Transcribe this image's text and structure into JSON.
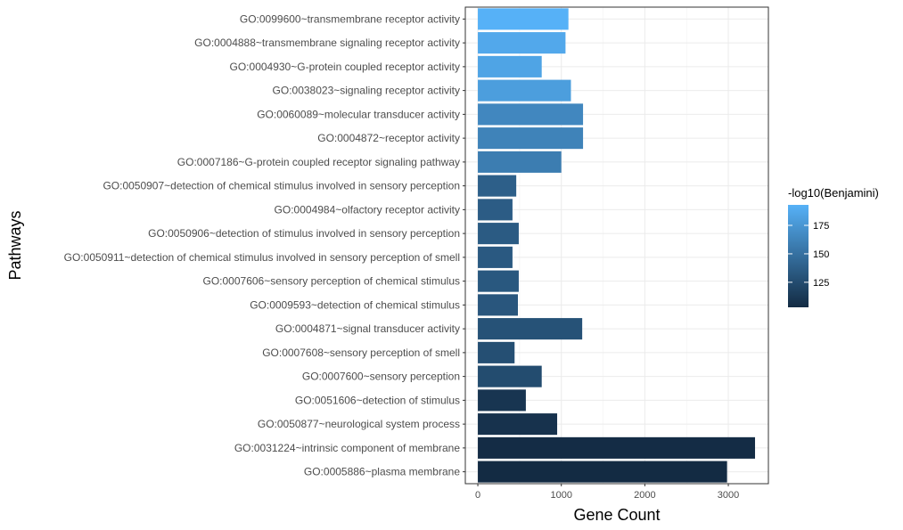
{
  "chart_data": {
    "type": "bar",
    "orientation": "horizontal",
    "title": "",
    "xlabel": "Gene Count",
    "ylabel": "Pathways",
    "xlim": [
      -150,
      3480
    ],
    "xticks": [
      0,
      1000,
      2000,
      3000
    ],
    "grid": true,
    "legend": {
      "title": "-log10(Benjamini)",
      "placement": "right",
      "ticks": [
        125,
        150,
        175
      ],
      "range": [
        103,
        193
      ],
      "color_low": "#132B43",
      "color_high": "#56B1F7"
    },
    "categories": [
      "GO:0099600~transmembrane receptor activity",
      "GO:0004888~transmembrane signaling receptor activity",
      "GO:0004930~G-protein coupled receptor activity",
      "GO:0038023~signaling receptor activity",
      "GO:0060089~molecular transducer activity",
      "GO:0004872~receptor activity",
      "GO:0007186~G-protein coupled receptor signaling pathway",
      "GO:0050907~detection of chemical stimulus involved in sensory perception",
      "GO:0004984~olfactory receptor activity",
      "GO:0050906~detection of stimulus involved in sensory perception",
      "GO:0050911~detection of chemical stimulus involved in sensory perception of smell",
      "GO:0007606~sensory perception of chemical stimulus",
      "GO:0009593~detection of chemical stimulus",
      "GO:0004871~signal transducer activity",
      "GO:0007608~sensory perception of smell",
      "GO:0007600~sensory perception",
      "GO:0051606~detection of stimulus",
      "GO:0050877~neurological system process",
      "GO:0031224~intrinsic component of membrane",
      "GO:0005886~plasma membrane"
    ],
    "values": [
      1085,
      1050,
      765,
      1115,
      1260,
      1260,
      1000,
      460,
      415,
      490,
      415,
      490,
      480,
      1250,
      440,
      765,
      575,
      950,
      3320,
      2985
    ],
    "color_values": [
      193,
      187,
      184,
      180,
      165,
      162,
      158,
      138,
      136,
      135,
      134,
      133,
      132,
      129,
      127,
      125,
      110,
      108,
      104,
      103
    ]
  }
}
